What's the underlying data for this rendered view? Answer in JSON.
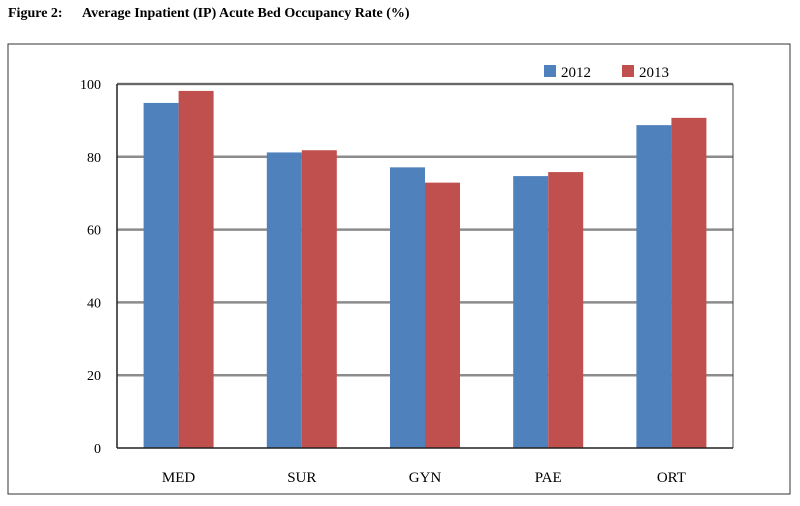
{
  "caption": {
    "figure_number": "Figure 2:",
    "title": "Average Inpatient (IP) Acute Bed Occupancy Rate (%)"
  },
  "colors": {
    "2012": "#4f81bd",
    "2013": "#c0504d",
    "gridline": "#8c8c8c",
    "frame": "#333333"
  },
  "chart_data": {
    "type": "bar",
    "title": "Average Inpatient (IP) Acute Bed Occupancy Rate (%)",
    "xlabel": "",
    "ylabel": "",
    "categories": [
      "MED",
      "SUR",
      "GYN",
      "PAE",
      "ORT"
    ],
    "series": [
      {
        "name": "2012",
        "values": [
          94.8,
          81.2,
          77.1,
          74.7,
          88.7
        ]
      },
      {
        "name": "2013",
        "values": [
          98.1,
          81.8,
          72.9,
          75.8,
          90.7
        ]
      }
    ],
    "ylim": [
      0,
      100
    ],
    "yticks": [
      "0",
      "20",
      "40",
      "60",
      "80",
      "100"
    ],
    "grid": true,
    "legend_position": "top-right"
  }
}
